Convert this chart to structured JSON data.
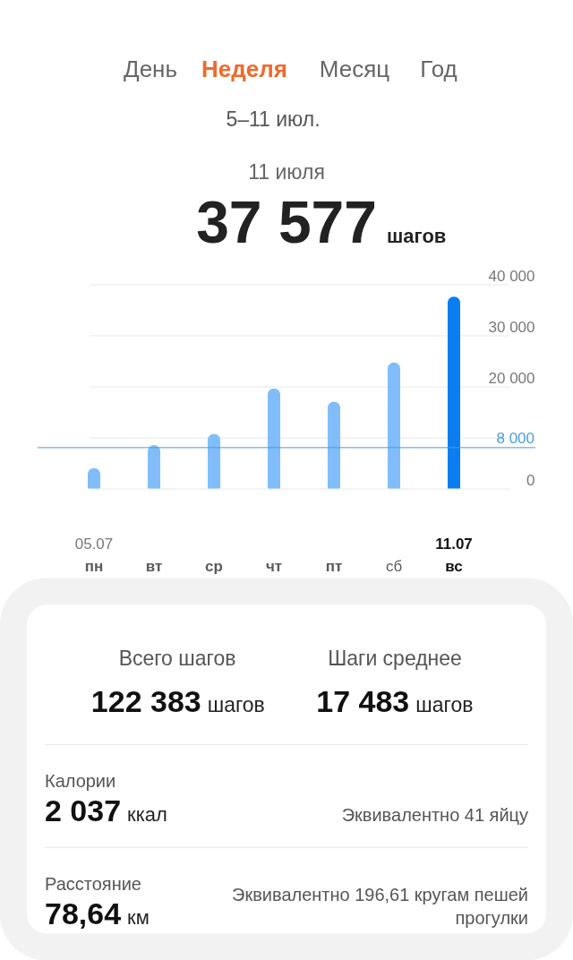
{
  "chart_data": [
    {
      "type": "bar",
      "title": "5–11 июл.",
      "subtitle": "11 июля",
      "annotations": [
        "День",
        "Неделя",
        "Месяц",
        "Год",
        "37 577",
        "шагов",
        "05.07",
        "11.07"
      ],
      "categories": [
        "пн",
        "вт",
        "ср",
        "чт",
        "пт",
        "сб",
        "вс"
      ],
      "values": [
        4000,
        8500,
        10700,
        19600,
        17000,
        24700,
        37577
      ],
      "colors": [
        "#80bdfa",
        "#80bdfa",
        "#80bdfa",
        "#80bdfa",
        "#80bdfa",
        "#80bdfa",
        "#0a7ef0"
      ],
      "ylim": [
        0,
        40000
      ],
      "yticks": [
        0,
        {
          "value": 10000,
          "label": null
        },
        {
          "value": 20000,
          "label": "20 000"
        },
        {
          "value": 30000,
          "label": "30 000"
        },
        {
          "value": 40000,
          "label": "40 000"
        }
      ],
      "grid": "y",
      "ref_lines": [
        {
          "axis": "y",
          "value": 8000,
          "label": "8 000",
          "color": "#4a9dd6"
        }
      ]
    },
    {
      "type": "other",
      "annotations": [
        "Всего шагов",
        "122 383",
        "шагов",
        "Шаги среднее",
        "17 483",
        "шагов",
        "Калории",
        "2 037",
        "ккал",
        "Эквивалентно 41 яйцу",
        "Расстояние",
        "78,64",
        "км",
        "Эквивалентно 196,61 кругам пешей прогулки"
      ]
    }
  ]
}
